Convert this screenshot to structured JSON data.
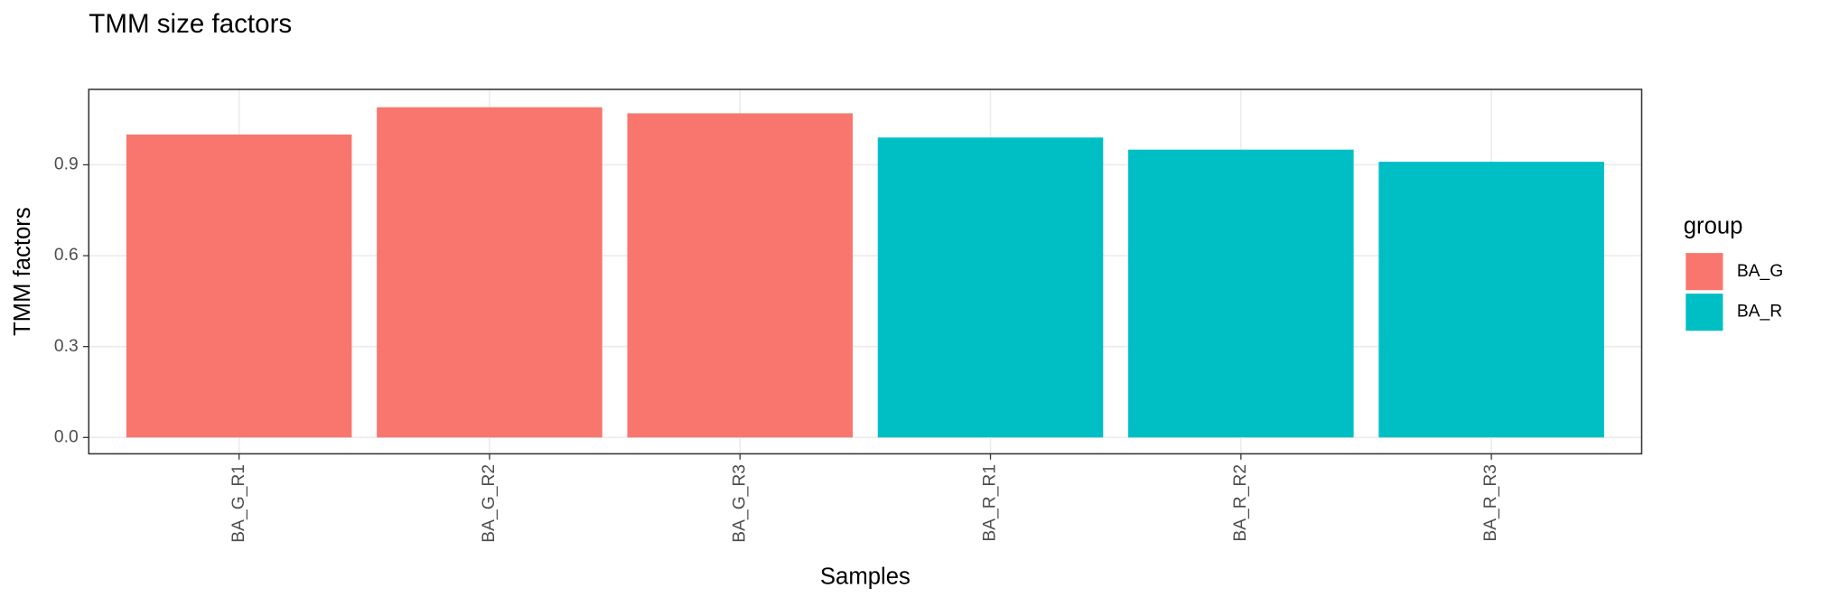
{
  "chart_data": {
    "type": "bar",
    "title": "TMM size factors",
    "x_label": "Samples",
    "y_label": "TMM factors",
    "categories": [
      "BA_G_R1",
      "BA_G_R2",
      "BA_G_R3",
      "BA_R_R1",
      "BA_R_R2",
      "BA_R_R3"
    ],
    "series": [
      {
        "name": "BA_G",
        "color": "#f8766d",
        "values": [
          1.0,
          1.09,
          1.07,
          null,
          null,
          null
        ]
      },
      {
        "name": "BA_R",
        "color": "#00bfc4",
        "values": [
          null,
          null,
          null,
          0.99,
          0.95,
          0.91
        ]
      }
    ],
    "legend_title": "group",
    "legend": "right",
    "ylim": [
      -0.054,
      1.149
    ],
    "yticks": [
      {
        "value": 0,
        "label": "0.0"
      },
      0.3,
      0.6,
      0.9
    ],
    "grid": true
  }
}
